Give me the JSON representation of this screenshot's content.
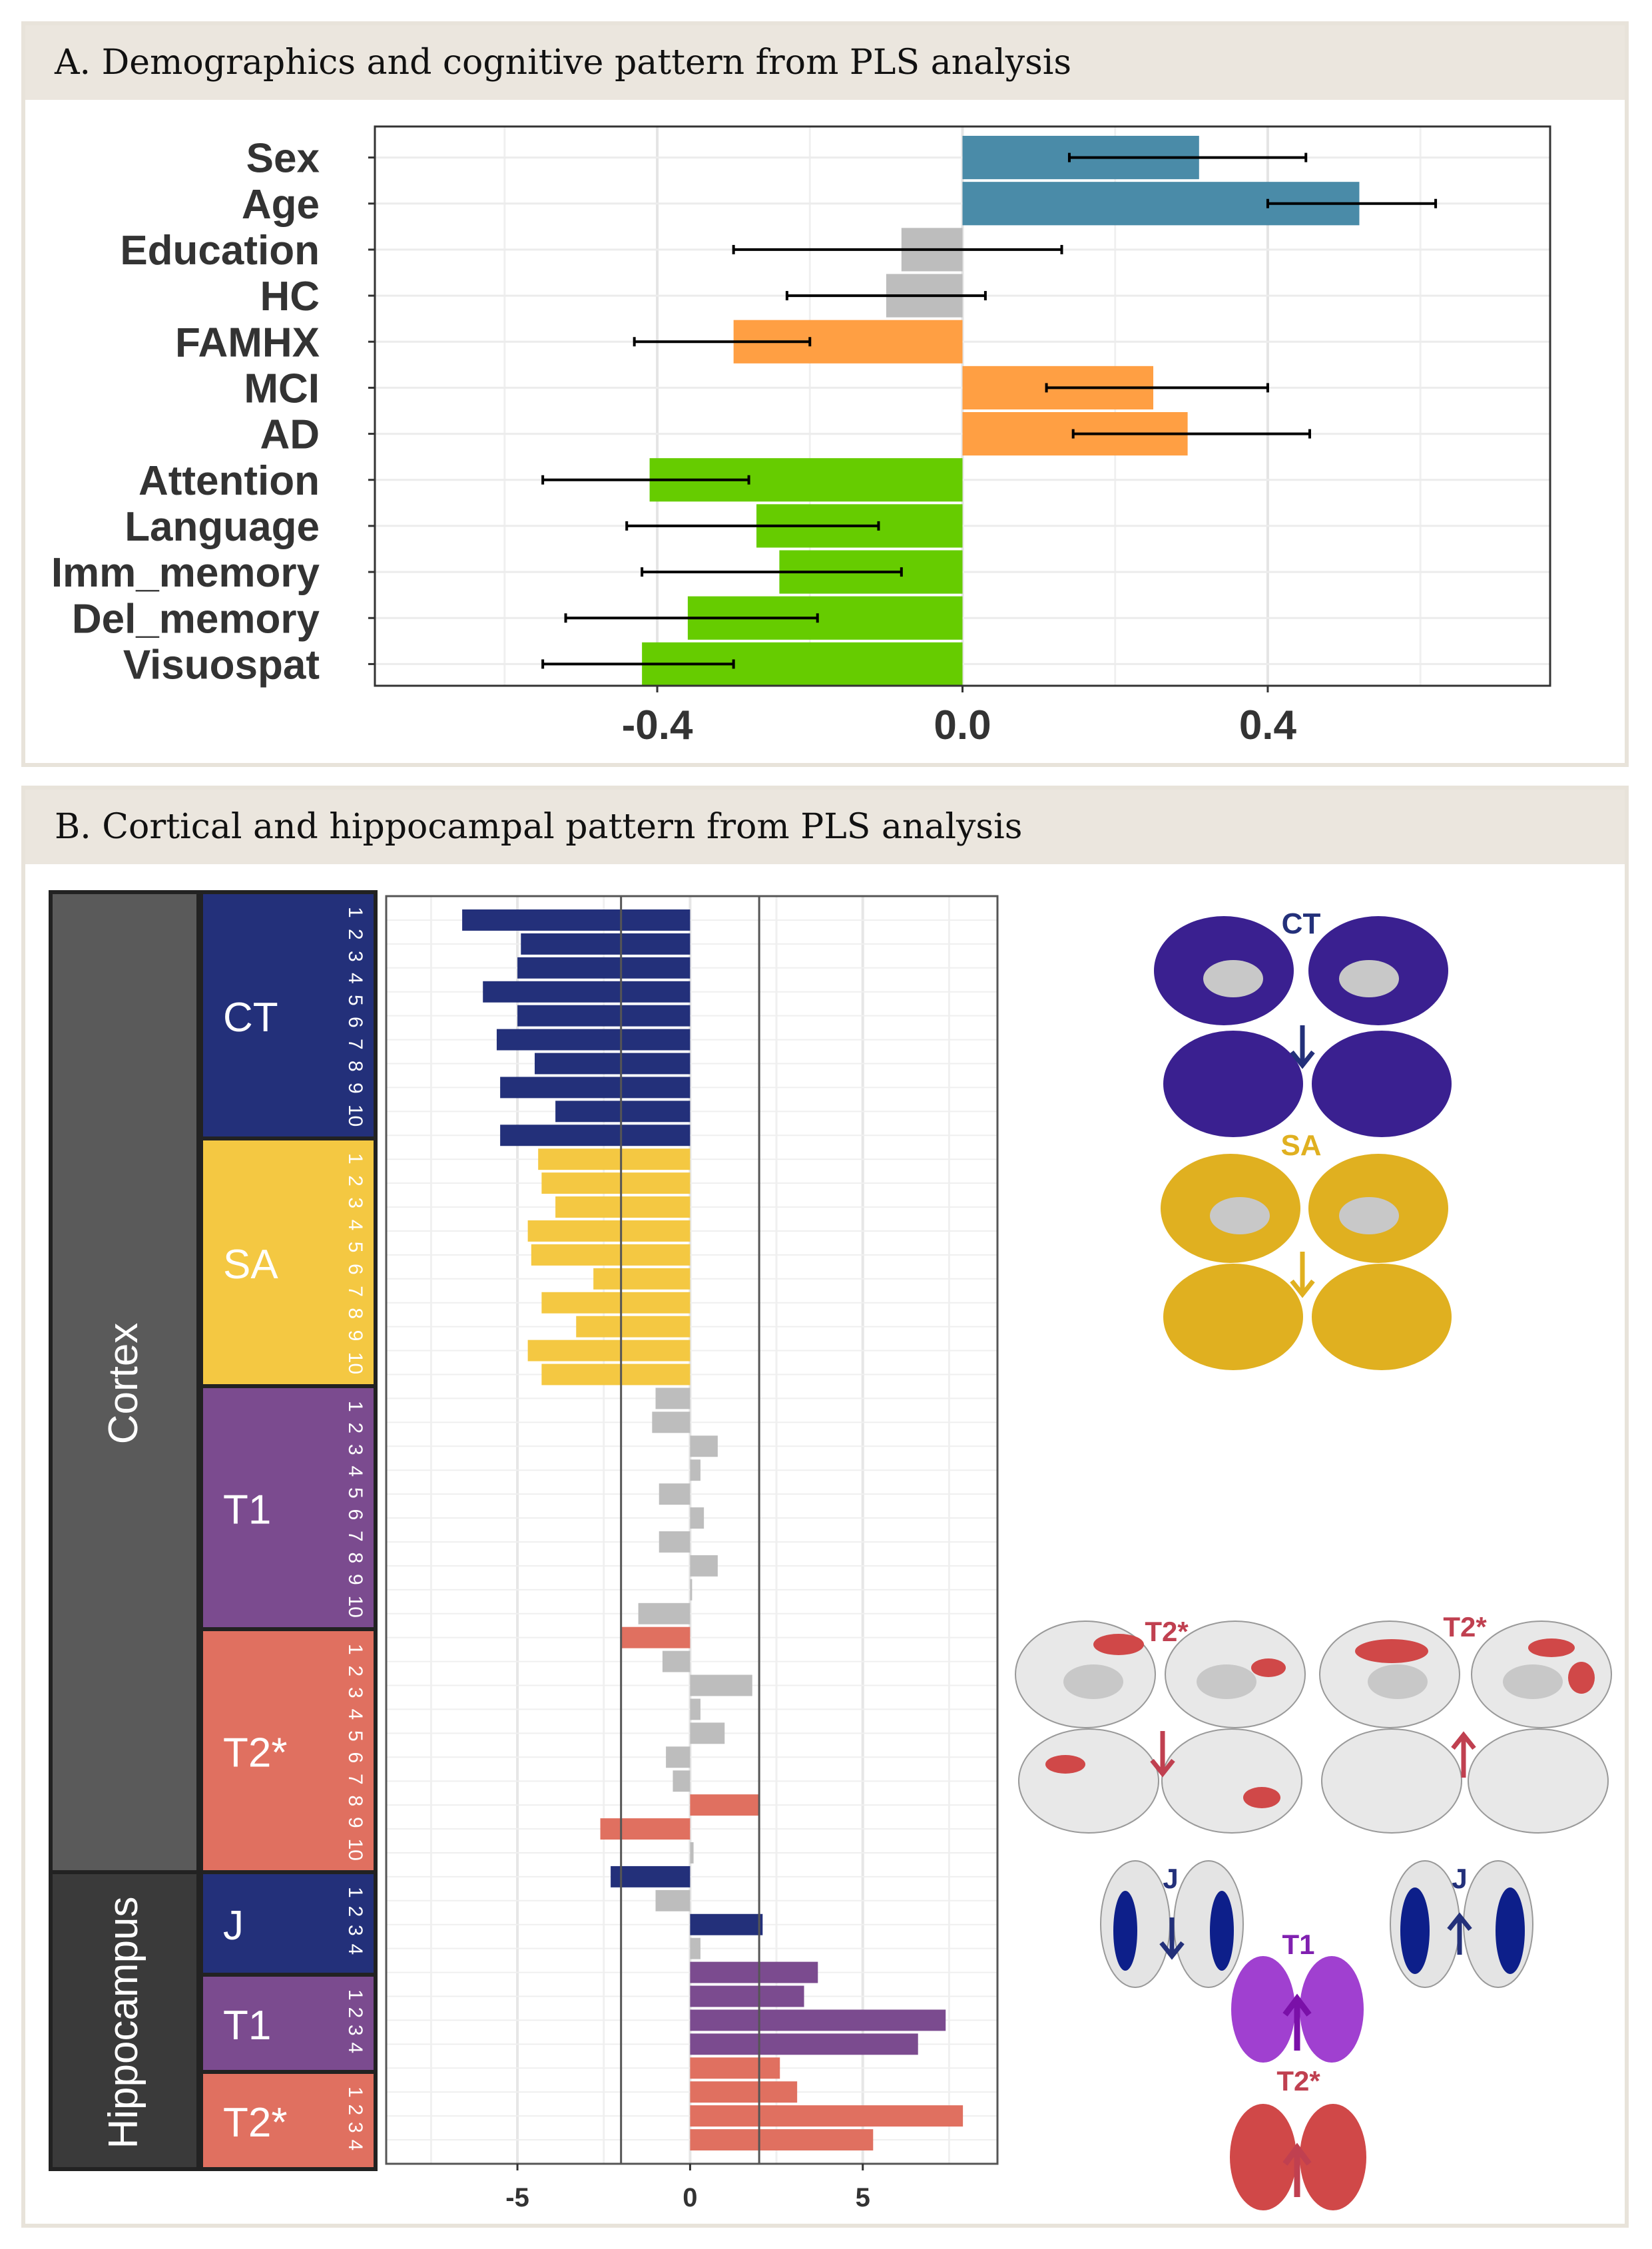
{
  "panel_a": {
    "title": "A. Demographics and cognitive pattern from PLS analysis"
  },
  "panel_b": {
    "title": "B. Cortical and hippocampal pattern from PLS analysis",
    "group_labels": {
      "cortex": "Cortex",
      "hippocampus": "Hippocampus"
    },
    "brain_panels": {
      "ct_label": "CT",
      "sa_label": "SA",
      "t2_left_label": "T2*",
      "t2_right_label": "T2*",
      "j_left_label": "J",
      "j_right_label": "J",
      "t1_hip_label": "T1",
      "t2_hip_label": "T2*"
    }
  },
  "colors": {
    "blue_demo": "#4a8ba8",
    "gray": "#bdbdbd",
    "orange": "#ff9f43",
    "green": "#66cc00",
    "ct": "#23307a",
    "sa": "#f4c842",
    "t1": "#7b4b8f",
    "t2": "#e07060",
    "brain_ct": "#3a2090",
    "brain_sa": "#e0b020",
    "brain_t1": "#a040d0",
    "brain_t2": "#d04848",
    "brain_j": "#0d1f8a",
    "brain_red_arrow": "#c04050"
  },
  "chart_data": [
    {
      "type": "bar",
      "orientation": "horizontal",
      "title": "A. Demographics and cognitive pattern from PLS analysis",
      "categories": [
        "Sex",
        "Age",
        "Education",
        "HC",
        "FAMHX",
        "MCI",
        "AD",
        "Attention",
        "Language",
        "Imm_memory",
        "Del_memory",
        "Visuospat"
      ],
      "values": [
        0.31,
        0.52,
        -0.08,
        -0.1,
        -0.3,
        0.25,
        0.295,
        -0.41,
        -0.27,
        -0.24,
        -0.36,
        -0.42
      ],
      "error_low": [
        0.14,
        0.4,
        -0.3,
        -0.23,
        -0.43,
        0.11,
        0.145,
        -0.55,
        -0.44,
        -0.42,
        -0.52,
        -0.55
      ],
      "error_high": [
        0.45,
        0.62,
        0.13,
        0.03,
        -0.2,
        0.4,
        0.455,
        -0.28,
        -0.11,
        -0.08,
        -0.19,
        -0.3
      ],
      "colors": [
        "blue_demo",
        "blue_demo",
        "gray",
        "gray",
        "orange",
        "orange",
        "orange",
        "green",
        "green",
        "green",
        "green",
        "green"
      ],
      "xlim": [
        -0.77,
        0.77
      ],
      "xticks": [
        "-0.4",
        "0.0",
        "0.4"
      ],
      "xtick_values": [
        -0.4,
        0.0,
        0.4
      ],
      "xlabel": "",
      "ylabel": "",
      "grid": true
    },
    {
      "type": "bar",
      "orientation": "horizontal",
      "title": "B. Cortical and hippocampal pattern from PLS analysis",
      "groups": [
        {
          "name": "CT",
          "parent": "Cortex",
          "color": "ct",
          "index_labels": [
            "1",
            "2",
            "3",
            "4",
            "5",
            "6",
            "7",
            "8",
            "9",
            "10"
          ],
          "values": [
            -6.6,
            -4.9,
            -5.0,
            -6.0,
            -5.0,
            -5.6,
            -4.5,
            -5.5,
            -3.9,
            -5.5
          ],
          "colors": [
            "ct",
            "ct",
            "ct",
            "ct",
            "ct",
            "ct",
            "ct",
            "ct",
            "ct",
            "ct"
          ]
        },
        {
          "name": "SA",
          "parent": "Cortex",
          "color": "sa",
          "index_labels": [
            "1",
            "2",
            "3",
            "4",
            "5",
            "6",
            "7",
            "8",
            "9",
            "10"
          ],
          "values": [
            -4.4,
            -4.3,
            -3.9,
            -4.7,
            -4.6,
            -2.8,
            -4.3,
            -3.3,
            -4.7,
            -4.3
          ],
          "colors": [
            "sa",
            "sa",
            "sa",
            "sa",
            "sa",
            "sa",
            "sa",
            "sa",
            "sa",
            "sa"
          ]
        },
        {
          "name": "T1",
          "parent": "Cortex",
          "color": "t1",
          "index_labels": [
            "1",
            "2",
            "3",
            "4",
            "5",
            "6",
            "7",
            "8",
            "9",
            "10"
          ],
          "values": [
            -1.0,
            -1.1,
            0.8,
            0.3,
            -0.9,
            0.4,
            -0.9,
            0.8,
            0.0,
            -1.5
          ],
          "colors": [
            "gray",
            "gray",
            "gray",
            "gray",
            "gray",
            "gray",
            "gray",
            "gray",
            "gray",
            "gray"
          ]
        },
        {
          "name": "T2*",
          "parent": "Cortex",
          "color": "t2",
          "index_labels": [
            "1",
            "2",
            "3",
            "4",
            "5",
            "6",
            "7",
            "8",
            "9",
            "10"
          ],
          "values": [
            -2.0,
            -0.8,
            1.8,
            0.3,
            1.0,
            -0.7,
            -0.5,
            2.0,
            -2.6,
            0.1
          ],
          "colors": [
            "t2",
            "gray",
            "gray",
            "gray",
            "gray",
            "gray",
            "gray",
            "t2",
            "t2",
            "gray"
          ]
        },
        {
          "name": "J",
          "parent": "Hippocampus",
          "color": "ct",
          "index_labels": [
            "1",
            "2",
            "3",
            "4"
          ],
          "values": [
            -2.3,
            -1.0,
            2.1,
            0.3
          ],
          "colors": [
            "ct",
            "gray",
            "ct",
            "gray"
          ]
        },
        {
          "name": "T1",
          "parent": "Hippocampus",
          "color": "t1",
          "index_labels": [
            "1",
            "2",
            "3",
            "4"
          ],
          "values": [
            3.7,
            3.3,
            7.4,
            6.6
          ],
          "colors": [
            "t1",
            "t1",
            "t1",
            "t1"
          ]
        },
        {
          "name": "T2*",
          "parent": "Hippocampus",
          "color": "t2",
          "index_labels": [
            "1",
            "2",
            "3",
            "4"
          ],
          "values": [
            2.6,
            3.1,
            7.9,
            5.3
          ],
          "colors": [
            "t2",
            "t2",
            "t2",
            "t2"
          ]
        }
      ],
      "xlim": [
        -8.8,
        8.9
      ],
      "xticks": [
        "-5",
        "0",
        "5"
      ],
      "xtick_values": [
        -5,
        0,
        5
      ],
      "reference_lines": [
        -2,
        2
      ],
      "xlabel": "",
      "ylabel": "",
      "grid": true
    }
  ]
}
